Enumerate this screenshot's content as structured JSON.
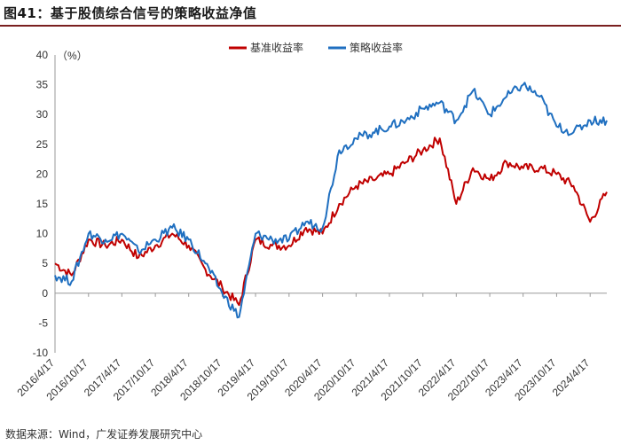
{
  "header": {
    "figure_label": "图41：",
    "title": "基于股债综合信号的策略收益净值"
  },
  "footer": {
    "source": "数据来源：Wind，广发证券发展研究中心"
  },
  "colors": {
    "benchmark": "#c00000",
    "strategy": "#1f6fc0",
    "axis": "#999999",
    "title_rule": "#7a1f1f"
  },
  "chart_data": {
    "type": "line",
    "unit_label": "（%）",
    "ylim": [
      -10,
      40
    ],
    "yticks": [
      -10,
      -5,
      0,
      5,
      10,
      15,
      20,
      25,
      30,
      35,
      40
    ],
    "legend_position": "top-right",
    "grid": false,
    "x_ticks": [
      "2016/4/17",
      "2016/10/17",
      "2017/4/17",
      "2017/10/17",
      "2018/4/17",
      "2018/10/17",
      "2019/4/17",
      "2019/10/17",
      "2020/4/17",
      "2020/10/17",
      "2021/4/17",
      "2021/10/17",
      "2022/4/17",
      "2022/10/17",
      "2023/4/17",
      "2023/10/17",
      "2024/4/17"
    ],
    "series": [
      {
        "name": "基准收益率",
        "color": "#c00000",
        "x": [
          "2016/4/17",
          "2016/7/17",
          "2016/10/17",
          "2017/1/17",
          "2017/4/17",
          "2017/7/17",
          "2017/10/17",
          "2018/1/17",
          "2018/4/17",
          "2018/7/17",
          "2018/10/17",
          "2019/1/17",
          "2019/4/17",
          "2019/7/17",
          "2019/10/17",
          "2020/1/17",
          "2020/4/17",
          "2020/7/17",
          "2020/10/17",
          "2021/1/17",
          "2021/4/17",
          "2021/7/17",
          "2021/10/17",
          "2022/1/17",
          "2022/4/17",
          "2022/7/17",
          "2022/10/17",
          "2023/1/17",
          "2023/4/17",
          "2023/7/17",
          "2023/10/17",
          "2024/1/17",
          "2024/4/17",
          "2024/7/17"
        ],
        "values": [
          5,
          3,
          9,
          8,
          9,
          6,
          8,
          10,
          8,
          4,
          1,
          -2,
          9,
          8,
          8,
          11,
          10,
          15,
          18,
          19,
          20,
          22,
          24,
          26,
          15,
          21,
          19,
          22,
          21,
          21,
          20,
          18,
          12,
          17
        ]
      },
      {
        "name": "策略收益率",
        "color": "#1f6fc0",
        "x": [
          "2016/4/17",
          "2016/7/17",
          "2016/10/17",
          "2017/1/17",
          "2017/4/17",
          "2017/7/17",
          "2017/10/17",
          "2018/1/17",
          "2018/4/17",
          "2018/7/17",
          "2018/10/17",
          "2019/1/17",
          "2019/4/17",
          "2019/7/17",
          "2019/10/17",
          "2020/1/17",
          "2020/4/17",
          "2020/7/17",
          "2020/10/17",
          "2021/1/17",
          "2021/4/17",
          "2021/7/17",
          "2021/10/17",
          "2022/1/17",
          "2022/4/17",
          "2022/7/17",
          "2022/10/17",
          "2023/1/17",
          "2023/4/17",
          "2023/7/17",
          "2023/10/17",
          "2024/1/17",
          "2024/4/17",
          "2024/7/17"
        ],
        "values": [
          3,
          2,
          10,
          9,
          10,
          7,
          9,
          11,
          9,
          5,
          0,
          -4,
          10,
          9,
          9,
          12,
          11,
          24,
          26,
          27,
          28,
          29,
          31,
          32,
          29,
          34,
          30,
          33,
          35,
          33,
          28,
          27,
          29,
          29
        ]
      }
    ]
  }
}
